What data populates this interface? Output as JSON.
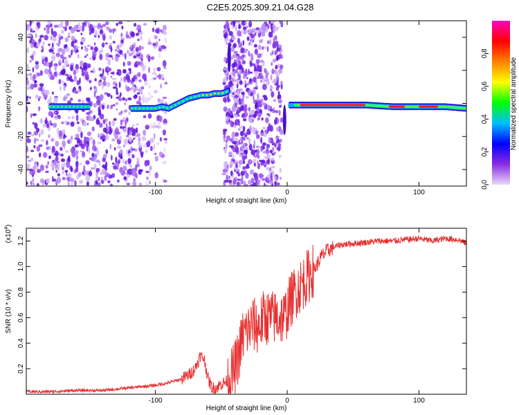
{
  "title": "C2E5.2025.309.21.04.G28",
  "chart_data": [
    {
      "type": "heatmap",
      "name": "spectrogram",
      "xlabel": "Height of straight line (km)",
      "ylabel": "Frequency (Hz)",
      "xlim": [
        -198,
        136
      ],
      "ylim": [
        -50,
        50
      ],
      "xticks": [
        -100,
        0,
        100
      ],
      "xtick_labels": [
        "-100",
        "0",
        "100"
      ],
      "yticks": [
        -40,
        -20,
        0,
        20,
        40
      ],
      "ytick_labels": [
        "-40",
        "-20",
        "0",
        "20",
        "40"
      ],
      "ridge": {
        "x": [
          -180,
          -170,
          -160,
          -150,
          -118,
          -110,
          -100,
          -95,
          -90,
          -85,
          -80,
          -75,
          -70,
          -65,
          -60,
          -55,
          -50,
          -46,
          -44,
          0,
          10,
          20,
          40,
          60,
          80,
          100,
          120,
          136
        ],
        "y": [
          -2,
          -2,
          -2,
          -2,
          -3,
          -3,
          -3,
          -2,
          -3,
          -1,
          1,
          3,
          4,
          5,
          5,
          6,
          6,
          7,
          8,
          -1,
          -1,
          -1,
          -1,
          -1,
          -2,
          -2,
          -2,
          -3
        ]
      },
      "colorbar": {
        "label": "Normalized spectral amplitude",
        "range": [
          0.0,
          1.0
        ],
        "ticks": [
          0.0,
          0.2,
          0.4,
          0.6,
          0.8
        ],
        "tick_labels": [
          "0.0",
          "0.2",
          "0.4",
          "0.6",
          "0.8"
        ],
        "colors": [
          "#e8d8f8",
          "#8a2be2",
          "#0000ff",
          "#00bfff",
          "#00ff00",
          "#ffff00",
          "#ff8000",
          "#ff0000",
          "#ff00c0"
        ]
      }
    },
    {
      "type": "line",
      "name": "snr",
      "xlabel": "Height of straight line (km)",
      "ylabel": "SNR (10 * v/v)",
      "y_multiplier": "(x10",
      "y_multiplier_exp": "4",
      "y_multiplier_close": ")",
      "xlim": [
        -198,
        136
      ],
      "ylim": [
        0,
        1.3
      ],
      "xticks": [
        -100,
        0,
        100
      ],
      "xtick_labels": [
        "-100",
        "0",
        "100"
      ],
      "yticks": [
        0.2,
        0.4,
        0.6,
        0.8,
        1.0,
        1.2
      ],
      "ytick_labels": [
        "0.2",
        "0.4",
        "0.6",
        "0.8",
        "1.0",
        "1.2"
      ],
      "color": "#e83030",
      "series": [
        {
          "name": "SNR",
          "x": [
            -198,
            -180,
            -160,
            -140,
            -120,
            -110,
            -100,
            -90,
            -80,
            -75,
            -70,
            -66,
            -63,
            -60,
            -57,
            -54,
            -50,
            -46,
            -42,
            -38,
            -34,
            -30,
            -26,
            -22,
            -18,
            -14,
            -10,
            -6,
            -2,
            2,
            6,
            10,
            14,
            18,
            22,
            26,
            30,
            35,
            40,
            50,
            60,
            70,
            80,
            90,
            100,
            110,
            120,
            130,
            136
          ],
          "y": [
            0.02,
            0.02,
            0.03,
            0.03,
            0.05,
            0.06,
            0.07,
            0.09,
            0.12,
            0.15,
            0.2,
            0.3,
            0.28,
            0.12,
            0.05,
            0.05,
            0.08,
            0.1,
            0.15,
            0.25,
            0.45,
            0.5,
            0.55,
            0.52,
            0.6,
            0.6,
            0.6,
            0.6,
            0.6,
            0.72,
            0.8,
            0.85,
            0.9,
            0.95,
            1.0,
            1.08,
            1.12,
            1.15,
            1.17,
            1.18,
            1.19,
            1.2,
            1.2,
            1.21,
            1.22,
            1.2,
            1.22,
            1.21,
            1.18
          ]
        }
      ]
    }
  ]
}
